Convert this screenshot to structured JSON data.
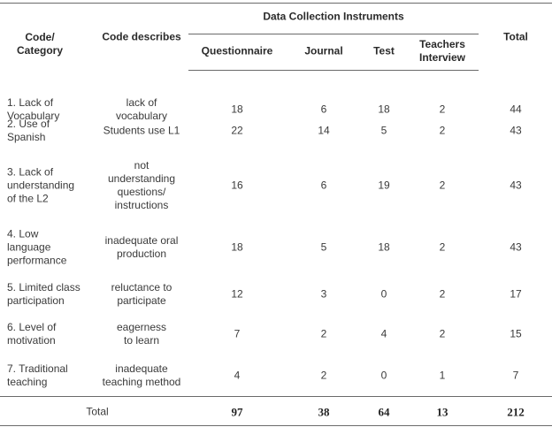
{
  "header": {
    "code_category": "Code/\nCategory",
    "code_describes": "Code describes",
    "group": "Data Collection Instruments",
    "questionnaire": "Questionnaire",
    "journal": "Journal",
    "test": "Test",
    "teachers_interview": "Teachers\nInterview",
    "total": "Total"
  },
  "rows": [
    {
      "category": "1. Lack of\nVocabulary",
      "describes": "lack of\nvocabulary",
      "questionnaire": "18",
      "journal": "6",
      "test": "18",
      "interview": "2",
      "total": "44"
    },
    {
      "category": "2. Use of\nSpanish",
      "describes": "Students use L1",
      "questionnaire": "22",
      "journal": "14",
      "test": "5",
      "interview": "2",
      "total": "43"
    },
    {
      "category": "3. Lack of\nunderstanding\nof the L2",
      "describes": "not\nunderstanding\nquestions/\ninstructions",
      "questionnaire": "16",
      "journal": "6",
      "test": "19",
      "interview": "2",
      "total": "43"
    },
    {
      "category": "4. Low\nlanguage\nperformance",
      "describes": "inadequate oral\nproduction",
      "questionnaire": "18",
      "journal": "5",
      "test": "18",
      "interview": "2",
      "total": "43"
    },
    {
      "category": "5. Limited class\nparticipation",
      "describes": "reluctance to\nparticipate",
      "questionnaire": "12",
      "journal": "3",
      "test": "0",
      "interview": "2",
      "total": "17"
    },
    {
      "category": "6. Level of\nmotivation",
      "describes": "eagerness\nto learn",
      "questionnaire": "7",
      "journal": "2",
      "test": "4",
      "interview": "2",
      "total": "15"
    },
    {
      "category": "7. Traditional\nteaching",
      "describes": "inadequate\nteaching method",
      "questionnaire": "4",
      "journal": "2",
      "test": "0",
      "interview": "1",
      "total": "7"
    }
  ],
  "totals": {
    "label": "Total",
    "questionnaire": "97",
    "journal": "38",
    "test": "64",
    "interview": "13",
    "total": "212"
  }
}
